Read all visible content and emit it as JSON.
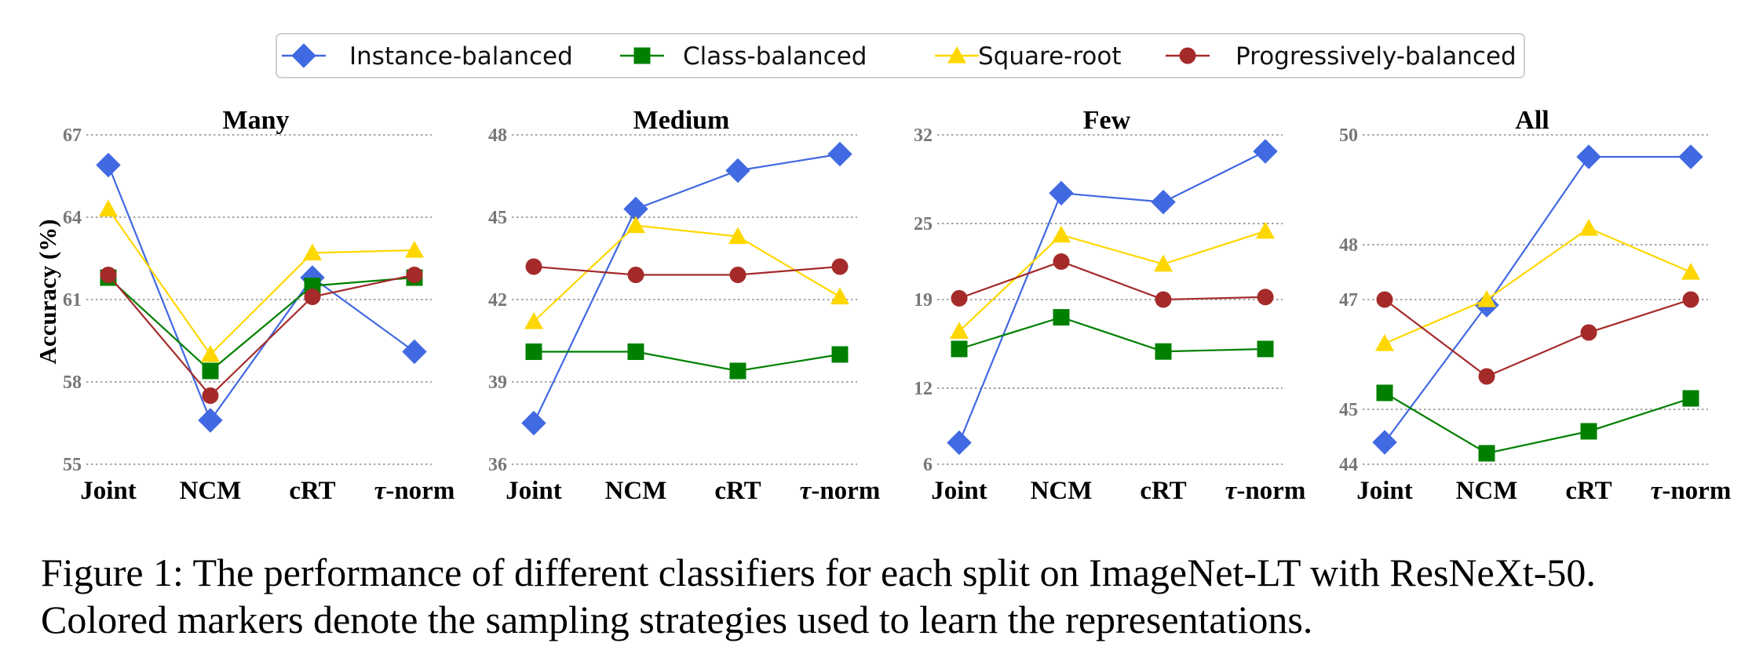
{
  "chart_data": {
    "type": "line",
    "legend": {
      "placement": "top-center",
      "entries": [
        {
          "name": "Instance-balanced",
          "color": "#4169e1",
          "marker": "diamond"
        },
        {
          "name": "Class-balanced",
          "color": "#008000",
          "marker": "square"
        },
        {
          "name": "Square-root",
          "color": "#ffd700",
          "marker": "triangle"
        },
        {
          "name": "Progressively-balanced",
          "color": "#a52a2a",
          "marker": "circle"
        }
      ]
    },
    "ylabel": "Accuracy (%)",
    "categories": [
      "Joint",
      "NCM",
      "cRT",
      "τ-norm"
    ],
    "grid": "horizontal dotted",
    "panels": [
      {
        "title": "Many",
        "ylim": [
          55,
          67
        ],
        "yticks": [
          55,
          58,
          61,
          64,
          67
        ],
        "series": [
          {
            "name": "Instance-balanced",
            "values": [
              65.9,
              56.6,
              61.8,
              59.1
            ]
          },
          {
            "name": "Class-balanced",
            "values": [
              61.8,
              58.4,
              61.5,
              61.8
            ]
          },
          {
            "name": "Square-root",
            "values": [
              64.3,
              59.0,
              62.7,
              62.8
            ]
          },
          {
            "name": "Progressively-balanced",
            "values": [
              61.9,
              57.5,
              61.1,
              61.9
            ]
          }
        ]
      },
      {
        "title": "Medium",
        "ylim": [
          36,
          48
        ],
        "yticks": [
          36,
          39,
          42,
          45,
          48
        ],
        "series": [
          {
            "name": "Instance-balanced",
            "values": [
              37.5,
              45.3,
              46.7,
              47.3
            ]
          },
          {
            "name": "Class-balanced",
            "values": [
              40.1,
              40.1,
              39.4,
              40.0
            ]
          },
          {
            "name": "Square-root",
            "values": [
              41.2,
              44.7,
              44.3,
              42.1
            ]
          },
          {
            "name": "Progressively-balanced",
            "values": [
              43.2,
              42.9,
              42.9,
              43.2
            ]
          }
        ]
      },
      {
        "title": "Few",
        "ylim": [
          6,
          32
        ],
        "yticks": [
          6,
          12,
          19,
          25,
          32
        ],
        "series": [
          {
            "name": "Instance-balanced",
            "values": [
              7.7,
              27.4,
              26.7,
              30.7
            ]
          },
          {
            "name": "Class-balanced",
            "values": [
              15.1,
              17.6,
              14.9,
              15.1
            ]
          },
          {
            "name": "Square-root",
            "values": [
              16.5,
              24.1,
              21.8,
              24.4
            ]
          },
          {
            "name": "Progressively-balanced",
            "values": [
              19.1,
              22.0,
              19.0,
              19.2
            ]
          }
        ]
      },
      {
        "title": "All",
        "ylim": [
          44,
          50
        ],
        "yticks": [
          44,
          45,
          47,
          48,
          50
        ],
        "series": [
          {
            "name": "Instance-balanced",
            "values": [
              44.4,
              46.9,
              49.6,
              49.6
            ]
          },
          {
            "name": "Class-balanced",
            "values": [
              45.3,
              44.2,
              44.6,
              45.2
            ]
          },
          {
            "name": "Square-root",
            "values": [
              46.2,
              47.0,
              48.3,
              47.5
            ]
          },
          {
            "name": "Progressively-balanced",
            "values": [
              47.0,
              45.6,
              46.4,
              47.0
            ]
          }
        ]
      }
    ]
  },
  "caption": {
    "line1": "Figure 1: The performance of different classifiers for each split on ImageNet-LT with ResNeXt-50.",
    "line2": "Colored markers denote the sampling strategies used to learn the representations."
  }
}
